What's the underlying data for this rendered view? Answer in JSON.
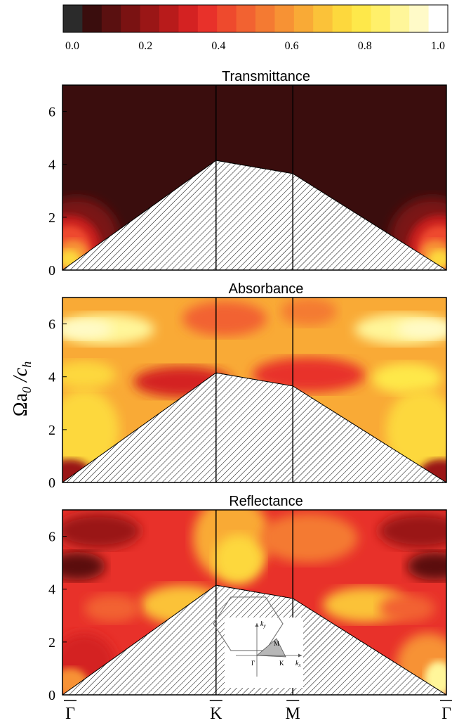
{
  "colorbar": {
    "ticks": [
      "0.0",
      "0.2",
      "0.4",
      "0.6",
      "0.8",
      "1.0"
    ],
    "tick_values": [
      0.0,
      0.2,
      0.4,
      0.6,
      0.8,
      1.0
    ],
    "range": [
      0.0,
      1.0
    ],
    "colors": [
      "#2b2b2b",
      "#3a0d0d",
      "#5a1010",
      "#7a1212",
      "#9a1616",
      "#b81b1b",
      "#d42222",
      "#e8312a",
      "#ee4a2d",
      "#f26231",
      "#f47a32",
      "#f79234",
      "#f9aa36",
      "#fbc239",
      "#fdd83d",
      "#fee84a",
      "#fff06a",
      "#fff69a",
      "#fffac8",
      "#ffffff"
    ]
  },
  "ylabel": "Ωa₀/c_h",
  "ylabel_parts": {
    "main": "Ωa",
    "sub1": "0",
    "mid": " /c",
    "sub2": "h"
  },
  "xticks": [
    "Γ",
    "K",
    "M",
    "Γ"
  ],
  "yticks": [
    "0",
    "2",
    "4",
    "6"
  ],
  "panels": [
    {
      "title": "Transmittance"
    },
    {
      "title": "Absorbance"
    },
    {
      "title": "Reflectance"
    }
  ],
  "inset": {
    "labels": {
      "ky": "k",
      "ky_sub": "y",
      "kx": "k",
      "kx_sub": "x",
      "gamma": "Γ",
      "K": "K",
      "M": "M"
    }
  },
  "chart_data": {
    "type": "heatmap",
    "panels": [
      "Transmittance",
      "Absorbance",
      "Reflectance"
    ],
    "x_ticks": [
      "Γ",
      "K",
      "M",
      "Γ"
    ],
    "x_positions": [
      0,
      1,
      1.5,
      2.5
    ],
    "ylabel": "Ωa₀/c_h",
    "ylim": [
      0,
      7
    ],
    "y_ticks": [
      0,
      2,
      4,
      6
    ],
    "colorbar_range": [
      0.0,
      1.0
    ],
    "light_line": {
      "x": [
        0,
        1,
        1.5,
        2.5
      ],
      "y": [
        0,
        4.15,
        3.65,
        0
      ]
    }
  }
}
